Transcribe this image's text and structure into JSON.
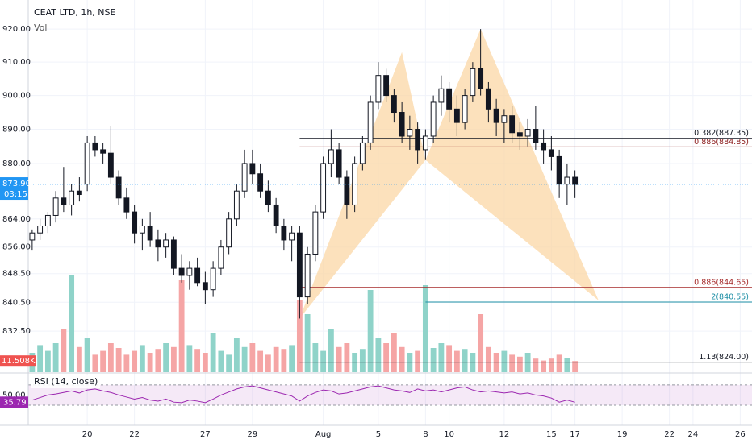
{
  "chart_data": {
    "type": "candlestick",
    "title": "CEAT LTD, 1h, NSE",
    "volume_label": "Vol",
    "rsi_label": "RSI (14, close)",
    "log_scale": true,
    "grid": true,
    "up_color": "#ffffff",
    "down_color": "#131722",
    "volume_up_color": "#8fd3c9",
    "volume_down_color": "#f5a5a5",
    "pattern_color": "#fbd7a6",
    "rsi_color": "#9c27b0",
    "categories": [
      null,
      null,
      null,
      null,
      null,
      null,
      null,
      "20",
      null,
      null,
      null,
      null,
      null,
      "22",
      null,
      null,
      null,
      null,
      null,
      null,
      null,
      null,
      "27",
      null,
      null,
      null,
      null,
      null,
      "29",
      null,
      null,
      null,
      null,
      null,
      null,
      null,
      null,
      "Aug",
      null,
      null,
      null,
      null,
      null,
      null,
      "5",
      null,
      null,
      null,
      null,
      null,
      "8",
      null,
      null,
      "10",
      null,
      null,
      null,
      null,
      null,
      null,
      "12",
      null,
      null,
      null,
      null,
      null,
      "15",
      null,
      null,
      "17",
      null,
      null,
      null,
      null,
      null,
      "19",
      null,
      null,
      null,
      null,
      null,
      "22",
      null,
      null,
      "24",
      null,
      null,
      null,
      null,
      null,
      "26",
      null
    ],
    "ohlc": [
      [
        858,
        861,
        855,
        860
      ],
      [
        860,
        864,
        858,
        862
      ],
      [
        862,
        866,
        860,
        865
      ],
      [
        865,
        872,
        863,
        870
      ],
      [
        870,
        879,
        866,
        868
      ],
      [
        868,
        874,
        865,
        872
      ],
      [
        872,
        876,
        869,
        871
      ],
      [
        874,
        888,
        872,
        886
      ],
      [
        886,
        888,
        882,
        884
      ],
      [
        884,
        886,
        880,
        883
      ],
      [
        883,
        891,
        874,
        876
      ],
      [
        876,
        878,
        868,
        870
      ],
      [
        870,
        873,
        864,
        866
      ],
      [
        866,
        868,
        857,
        860
      ],
      [
        860,
        864,
        855,
        862
      ],
      [
        862,
        866,
        856,
        858
      ],
      [
        858,
        861,
        852,
        856
      ],
      [
        856,
        860,
        853,
        858
      ],
      [
        858,
        859,
        848,
        850
      ],
      [
        850,
        854,
        846,
        848
      ],
      [
        848,
        852,
        844,
        850
      ],
      [
        850,
        853,
        845,
        846
      ],
      [
        846,
        849,
        840,
        844
      ],
      [
        844,
        852,
        842,
        850
      ],
      [
        850,
        858,
        848,
        856
      ],
      [
        856,
        866,
        854,
        864
      ],
      [
        864,
        874,
        862,
        872
      ],
      [
        872,
        884,
        870,
        880
      ],
      [
        880,
        884,
        874,
        877
      ],
      [
        877,
        880,
        870,
        872
      ],
      [
        872,
        875,
        866,
        868
      ],
      [
        868,
        870,
        860,
        862
      ],
      [
        862,
        864,
        855,
        858
      ],
      [
        858,
        862,
        852,
        860
      ],
      [
        860,
        862,
        836,
        842
      ],
      [
        842,
        856,
        840,
        854
      ],
      [
        854,
        868,
        852,
        866
      ],
      [
        866,
        882,
        864,
        880
      ],
      [
        880,
        890,
        876,
        884
      ],
      [
        884,
        886,
        874,
        876
      ],
      [
        876,
        878,
        864,
        868
      ],
      [
        868,
        882,
        866,
        880
      ],
      [
        880,
        888,
        878,
        886
      ],
      [
        886,
        900,
        884,
        898
      ],
      [
        898,
        910,
        896,
        906
      ],
      [
        906,
        908,
        898,
        900
      ],
      [
        900,
        902,
        892,
        895
      ],
      [
        895,
        898,
        886,
        888
      ],
      [
        888,
        894,
        884,
        890
      ],
      [
        890,
        892,
        880,
        884
      ],
      [
        884,
        890,
        881,
        888
      ],
      [
        888,
        900,
        886,
        898
      ],
      [
        898,
        906,
        894,
        902
      ],
      [
        902,
        904,
        892,
        896
      ],
      [
        896,
        900,
        888,
        892
      ],
      [
        892,
        902,
        890,
        900
      ],
      [
        900,
        910,
        898,
        908
      ],
      [
        908,
        920,
        900,
        902
      ],
      [
        902,
        904,
        892,
        896
      ],
      [
        896,
        899,
        888,
        892
      ],
      [
        892,
        896,
        886,
        894
      ],
      [
        894,
        897,
        886,
        889
      ],
      [
        889,
        892,
        884,
        888
      ],
      [
        888,
        893,
        885,
        890
      ],
      [
        890,
        897,
        884,
        886
      ],
      [
        886,
        890,
        880,
        884
      ],
      [
        884,
        888,
        878,
        882
      ],
      [
        882,
        884,
        870,
        874
      ],
      [
        874,
        880,
        868,
        876
      ],
      [
        876,
        878,
        870,
        873.9
      ],
      null,
      null,
      null,
      null,
      null,
      null,
      null,
      null,
      null,
      null,
      null,
      null,
      null,
      null,
      null,
      null,
      null,
      null,
      null,
      null,
      null,
      null
    ],
    "volume": [
      20000,
      28000,
      22000,
      30000,
      45000,
      100000,
      26000,
      35000,
      18000,
      22000,
      30000,
      25000,
      18000,
      22000,
      28000,
      20000,
      24000,
      30000,
      26000,
      95000,
      28000,
      24000,
      20000,
      40000,
      22000,
      18000,
      35000,
      26000,
      30000,
      22000,
      18000,
      26000,
      24000,
      28000,
      75000,
      60000,
      30000,
      22000,
      45000,
      26000,
      30000,
      20000,
      24000,
      85000,
      35000,
      30000,
      40000,
      26000,
      20000,
      22000,
      90000,
      25000,
      30000,
      28000,
      22000,
      24000,
      20000,
      60000,
      26000,
      20000,
      22000,
      18000,
      16000,
      20000,
      14000,
      12000,
      14000,
      18000,
      15000,
      11508,
      null,
      null,
      null,
      null,
      null,
      null,
      null,
      null,
      null,
      null,
      null,
      null,
      null,
      null,
      null,
      null,
      null,
      null,
      null,
      null,
      null,
      null
    ],
    "volume_last_label": "11.508K",
    "rsi": [
      40,
      45,
      50,
      52,
      55,
      58,
      54,
      60,
      62,
      58,
      55,
      50,
      46,
      42,
      45,
      40,
      38,
      42,
      36,
      35,
      40,
      38,
      35,
      42,
      50,
      56,
      62,
      66,
      68,
      64,
      60,
      56,
      52,
      48,
      38,
      48,
      55,
      60,
      58,
      52,
      54,
      58,
      62,
      66,
      68,
      64,
      60,
      58,
      55,
      62,
      58,
      60,
      56,
      60,
      64,
      66,
      60,
      56,
      58,
      56,
      54,
      56,
      52,
      54,
      50,
      48,
      44,
      36,
      40,
      35.79,
      null,
      null,
      null,
      null,
      null,
      null,
      null,
      null,
      null,
      null,
      null,
      null,
      null,
      null,
      null,
      null,
      null,
      null,
      null,
      null,
      null,
      null
    ],
    "rsi_last": 35.79,
    "rsi_ylim": [
      -10,
      89
    ],
    "rsi_yticks": [
      {
        "value": 50,
        "label": "50.00"
      }
    ],
    "rsi_bands": [
      70,
      30
    ],
    "ylim": [
      821.3,
      928.9
    ],
    "yticks": [
      {
        "value": 920,
        "label": "920.00"
      },
      {
        "value": 910,
        "label": "910.00"
      },
      {
        "value": 900,
        "label": "900.00"
      },
      {
        "value": 890,
        "label": "890.00"
      },
      {
        "value": 880,
        "label": "880.00"
      },
      {
        "value": 864,
        "label": "864.00"
      },
      {
        "value": 856,
        "label": "856.00"
      },
      {
        "value": 848.5,
        "label": "848.50"
      },
      {
        "value": 840.5,
        "label": "840.50"
      },
      {
        "value": 832.5,
        "label": "832.50"
      }
    ],
    "volume_lim": [
      0,
      110000
    ],
    "last_price": {
      "value": 873.9,
      "label": "873.90"
    },
    "countdown": "03:15",
    "pattern": [
      [
        34,
        836
      ],
      [
        47,
        913
      ],
      [
        50,
        881
      ],
      [
        57,
        920
      ],
      [
        72,
        841
      ]
    ],
    "levels": [
      {
        "label": "0.382(887.35)",
        "value": 887.35,
        "start": 34,
        "color": "#131722"
      },
      {
        "label": "0.886(884.85)",
        "value": 884.85,
        "start": 34,
        "color": "#8b1a1a"
      },
      {
        "label": "0.886(844.65)",
        "value": 844.65,
        "start": 34,
        "color": "#a52a2a"
      },
      {
        "label": "2(840.55)",
        "value": 840.55,
        "start": 50,
        "color": "#1e8fa6"
      },
      {
        "label": "1.13(824.00)",
        "value": 824,
        "start": 34,
        "color": "#131722"
      }
    ]
  }
}
